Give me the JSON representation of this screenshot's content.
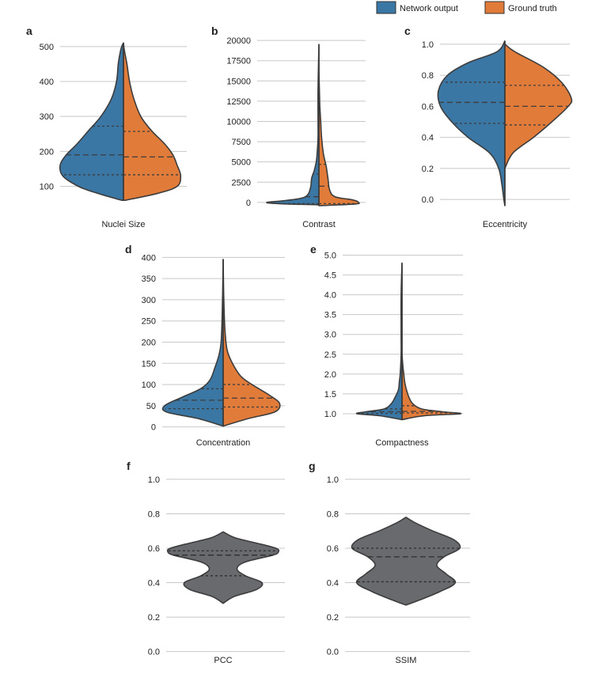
{
  "legend": {
    "entries": [
      {
        "label": "Network output",
        "color": "#3a77a4"
      },
      {
        "label": "Ground truth",
        "color": "#e07b39"
      }
    ]
  },
  "colors": {
    "network": "#3a77a4",
    "truth": "#e07b39",
    "single": "#696a6e",
    "outline": "#3d3d3d",
    "grid": "#c8c8c8"
  },
  "chart_data": [
    {
      "panel": "a",
      "type": "violin",
      "split": true,
      "xlabel": "Nuclei Size",
      "ylim": [
        40,
        520
      ],
      "yticks": [
        100,
        200,
        300,
        400,
        500
      ],
      "series": [
        {
          "name": "Network output",
          "density": [
            [
              60,
              2
            ],
            [
              80,
              30
            ],
            [
              100,
              52
            ],
            [
              130,
              70
            ],
            [
              160,
              73
            ],
            [
              190,
              66
            ],
            [
              220,
              54
            ],
            [
              260,
              40
            ],
            [
              300,
              26
            ],
            [
              350,
              14
            ],
            [
              400,
              8
            ],
            [
              450,
              6
            ],
            [
              480,
              4
            ],
            [
              500,
              2
            ],
            [
              510,
              0
            ]
          ],
          "quartiles": [
            133,
            190,
            272
          ]
        },
        {
          "name": "Ground truth",
          "density": [
            [
              60,
              2
            ],
            [
              80,
              40
            ],
            [
              100,
              62
            ],
            [
              130,
              66
            ],
            [
              160,
              62
            ],
            [
              190,
              57
            ],
            [
              220,
              48
            ],
            [
              260,
              32
            ],
            [
              300,
              20
            ],
            [
              350,
              12
            ],
            [
              400,
              7
            ],
            [
              450,
              4
            ],
            [
              490,
              1
            ],
            [
              510,
              0
            ]
          ],
          "quartiles": [
            133,
            184,
            257
          ]
        }
      ]
    },
    {
      "panel": "b",
      "type": "violin",
      "split": true,
      "xlabel": "Contrast",
      "ylim": [
        -600,
        20500
      ],
      "yticks": [
        0,
        2500,
        5000,
        7500,
        10000,
        12500,
        15000,
        17500,
        20000
      ],
      "series": [
        {
          "name": "Network output",
          "density": [
            [
              -300,
              0
            ],
            [
              -150,
              45
            ],
            [
              0,
              58
            ],
            [
              200,
              40
            ],
            [
              500,
              20
            ],
            [
              1000,
              12
            ],
            [
              2000,
              9
            ],
            [
              3000,
              8
            ],
            [
              4000,
              5
            ],
            [
              5000,
              3
            ],
            [
              6000,
              2
            ],
            [
              8000,
              1
            ],
            [
              10000,
              1
            ],
            [
              14000,
              1
            ],
            [
              19500,
              0
            ]
          ],
          "quartiles": [
            -150,
            700,
            3500
          ]
        },
        {
          "name": "Ground truth",
          "density": [
            [
              -400,
              0
            ],
            [
              -200,
              40
            ],
            [
              0,
              44
            ],
            [
              300,
              38
            ],
            [
              700,
              18
            ],
            [
              1500,
              12
            ],
            [
              3000,
              10
            ],
            [
              4500,
              8
            ],
            [
              6000,
              5
            ],
            [
              8000,
              3
            ],
            [
              10000,
              2
            ],
            [
              12000,
              1
            ],
            [
              14000,
              0.5
            ],
            [
              16000,
              0
            ]
          ],
          "quartiles": [
            -150,
            2000,
            4700
          ]
        }
      ]
    },
    {
      "panel": "c",
      "type": "violin",
      "split": true,
      "xlabel": "Eccentricity",
      "ylim": [
        -0.05,
        1.05
      ],
      "yticks": [
        0.0,
        0.2,
        0.4,
        0.6,
        0.8,
        1.0
      ],
      "series": [
        {
          "name": "Network output",
          "density": [
            [
              -0.04,
              0
            ],
            [
              0.0,
              1
            ],
            [
              0.1,
              3
            ],
            [
              0.2,
              6
            ],
            [
              0.3,
              15
            ],
            [
              0.4,
              36
            ],
            [
              0.5,
              52
            ],
            [
              0.6,
              63
            ],
            [
              0.7,
              65
            ],
            [
              0.8,
              56
            ],
            [
              0.88,
              36
            ],
            [
              0.95,
              8
            ],
            [
              1.02,
              0
            ]
          ],
          "quartiles": [
            0.49,
            0.625,
            0.755
          ]
        },
        {
          "name": "Ground truth",
          "density": [
            [
              0.2,
              0
            ],
            [
              0.3,
              8
            ],
            [
              0.4,
              28
            ],
            [
              0.5,
              46
            ],
            [
              0.6,
              62
            ],
            [
              0.65,
              65
            ],
            [
              0.75,
              56
            ],
            [
              0.85,
              38
            ],
            [
              0.95,
              10
            ],
            [
              1.0,
              0
            ]
          ],
          "quartiles": [
            0.48,
            0.6,
            0.735
          ]
        }
      ]
    },
    {
      "panel": "d",
      "type": "violin",
      "split": true,
      "xlabel": "Concentration",
      "ylim": [
        -10,
        410
      ],
      "yticks": [
        0,
        50,
        100,
        150,
        200,
        250,
        300,
        350,
        400
      ],
      "series": [
        {
          "name": "Network output",
          "density": [
            [
              2,
              0
            ],
            [
              20,
              25
            ],
            [
              35,
              55
            ],
            [
              50,
              57
            ],
            [
              70,
              40
            ],
            [
              90,
              22
            ],
            [
              110,
              13
            ],
            [
              140,
              8
            ],
            [
              170,
              4
            ],
            [
              200,
              2
            ],
            [
              260,
              1
            ],
            [
              320,
              0.5
            ],
            [
              395,
              0
            ]
          ],
          "quartiles": [
            43,
            63,
            90
          ]
        },
        {
          "name": "Ground truth",
          "density": [
            [
              2,
              0
            ],
            [
              20,
              25
            ],
            [
              35,
              50
            ],
            [
              55,
              55
            ],
            [
              75,
              45
            ],
            [
              100,
              28
            ],
            [
              120,
              17
            ],
            [
              150,
              9
            ],
            [
              180,
              4
            ],
            [
              220,
              2
            ],
            [
              270,
              1
            ],
            [
              320,
              0.5
            ],
            [
              395,
              0
            ]
          ],
          "quartiles": [
            47,
            68,
            100
          ]
        }
      ]
    },
    {
      "panel": "e",
      "type": "violin",
      "split": true,
      "xlabel": "Compactness",
      "ylim": [
        0.8,
        5.05
      ],
      "yticks": [
        1.0,
        1.5,
        2.0,
        2.5,
        3.0,
        3.5,
        4.0,
        4.5,
        5.0
      ],
      "series": [
        {
          "name": "Network output",
          "density": [
            [
              0.85,
              0
            ],
            [
              0.95,
              25
            ],
            [
              1.0,
              50
            ],
            [
              1.05,
              40
            ],
            [
              1.12,
              20
            ],
            [
              1.25,
              12
            ],
            [
              1.4,
              8
            ],
            [
              1.6,
              4
            ],
            [
              1.8,
              3
            ],
            [
              2.0,
              2
            ],
            [
              2.5,
              1
            ],
            [
              3.0,
              1
            ],
            [
              4.0,
              1
            ],
            [
              4.8,
              0
            ]
          ],
          "quartiles": [
            1.01,
            1.05,
            1.12
          ]
        },
        {
          "name": "Ground truth",
          "density": [
            [
              0.85,
              0
            ],
            [
              0.95,
              25
            ],
            [
              1.0,
              65
            ],
            [
              1.05,
              45
            ],
            [
              1.12,
              22
            ],
            [
              1.25,
              12
            ],
            [
              1.4,
              8
            ],
            [
              1.6,
              5
            ],
            [
              1.8,
              3
            ],
            [
              2.0,
              2
            ],
            [
              2.2,
              1
            ],
            [
              2.5,
              0
            ]
          ],
          "quartiles": [
            1.02,
            1.06,
            1.2
          ]
        }
      ]
    },
    {
      "panel": "f",
      "type": "violin",
      "split": false,
      "xlabel": "PCC",
      "ylim": [
        -0.02,
        1.05
      ],
      "yticks": [
        0.0,
        0.2,
        0.4,
        0.6,
        0.8,
        1.0
      ],
      "series": [
        {
          "name": "",
          "density": [
            [
              0.28,
              0
            ],
            [
              0.32,
              20
            ],
            [
              0.36,
              60
            ],
            [
              0.4,
              70
            ],
            [
              0.44,
              40
            ],
            [
              0.48,
              25
            ],
            [
              0.52,
              40
            ],
            [
              0.56,
              90
            ],
            [
              0.58,
              100
            ],
            [
              0.6,
              95
            ],
            [
              0.63,
              60
            ],
            [
              0.66,
              22
            ],
            [
              0.695,
              0
            ]
          ],
          "quartiles": [
            0.44,
            0.56,
            0.585
          ]
        }
      ]
    },
    {
      "panel": "g",
      "type": "violin",
      "split": false,
      "xlabel": "SSIM",
      "ylim": [
        -0.02,
        1.05
      ],
      "yticks": [
        0.0,
        0.2,
        0.4,
        0.6,
        0.8,
        1.0
      ],
      "series": [
        {
          "name": "",
          "density": [
            [
              0.27,
              0
            ],
            [
              0.3,
              25
            ],
            [
              0.35,
              62
            ],
            [
              0.4,
              88
            ],
            [
              0.45,
              72
            ],
            [
              0.5,
              55
            ],
            [
              0.55,
              68
            ],
            [
              0.6,
              96
            ],
            [
              0.65,
              85
            ],
            [
              0.7,
              48
            ],
            [
              0.75,
              15
            ],
            [
              0.78,
              0
            ]
          ],
          "quartiles": [
            0.405,
            0.55,
            0.6
          ]
        }
      ]
    }
  ]
}
